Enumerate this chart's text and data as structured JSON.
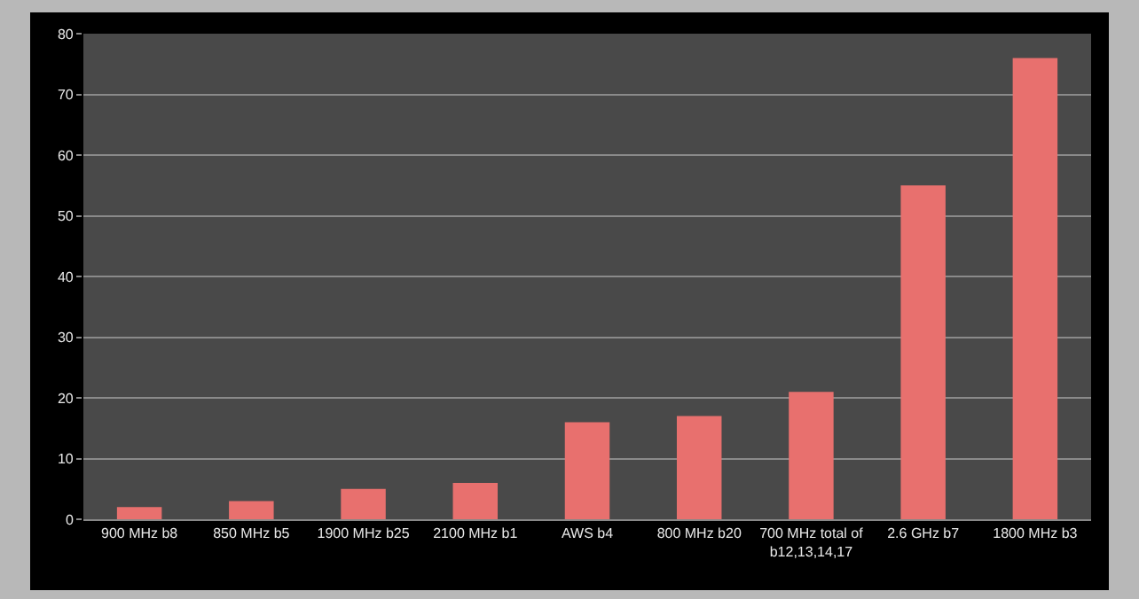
{
  "chart_data": {
    "type": "bar",
    "categories": [
      "900 MHz b8",
      "850 MHz b5",
      "1900 MHz b25",
      "2100 MHz b1",
      "AWS b4",
      "800 MHz b20",
      "700 MHz total of\nb12,13,14,17",
      "2.6 GHz b7",
      "1800 MHz b3"
    ],
    "values": [
      2,
      3,
      5,
      6,
      16,
      17,
      21,
      55,
      76
    ],
    "color": "#e8706e",
    "ylim": [
      0,
      80
    ],
    "yticks": [
      0,
      10,
      20,
      30,
      40,
      50,
      60,
      70,
      80
    ],
    "grid": "y"
  }
}
